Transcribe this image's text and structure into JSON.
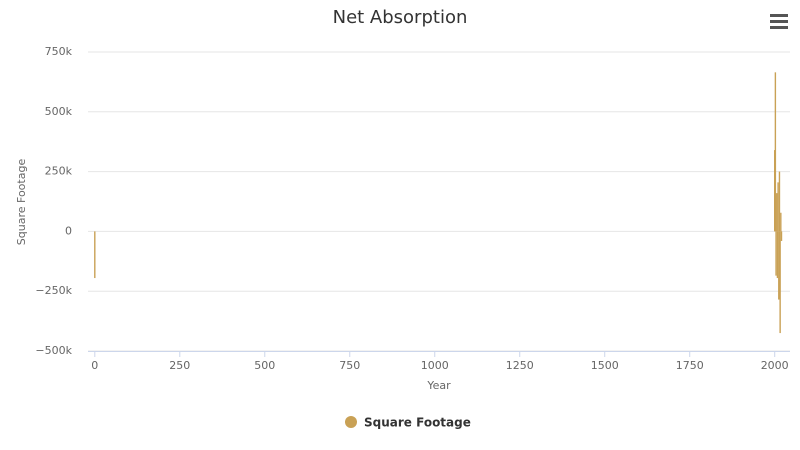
{
  "chart_data": {
    "type": "bar",
    "title": "Net Absorption",
    "x_label": "Year",
    "y_label": "Square Footage",
    "x": [
      0,
      2000,
      2002,
      2004,
      2006,
      2008,
      2010,
      2012,
      2014,
      2016,
      2018,
      2020
    ],
    "series": [
      {
        "name": "Square Footage",
        "color": "#c9a155",
        "values": [
          -195000,
          340000,
          665000,
          -185000,
          160000,
          -195000,
          205000,
          -285000,
          250000,
          -425000,
          78000,
          -40000
        ]
      }
    ],
    "xlim": [
      -20,
      2045
    ],
    "xticks": [
      0,
      250,
      500,
      750,
      1000,
      1250,
      1500,
      1750,
      2000
    ],
    "ylim": [
      -500000,
      750000
    ],
    "yticks": [
      {
        "value": -500000,
        "label": "−500k"
      },
      {
        "value": -250000,
        "label": "−250k"
      },
      0,
      {
        "value": 250000,
        "label": "250k"
      },
      {
        "value": 500000,
        "label": "500k"
      },
      {
        "value": 750000,
        "label": "750k"
      }
    ],
    "grid": true,
    "legend": "bottom"
  }
}
